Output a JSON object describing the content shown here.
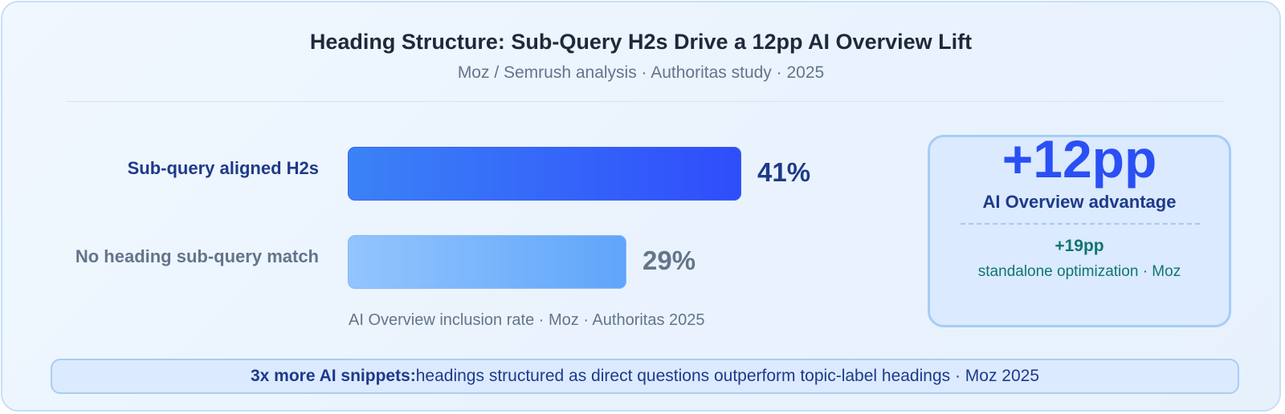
{
  "title": "Heading Structure: Sub-Query H2s Drive a 12pp AI Overview Lift",
  "subtitle": "Moz / Semrush analysis · Authoritas study · 2025",
  "chart_data": {
    "type": "bar",
    "orientation": "horizontal",
    "categories": [
      "Sub-query aligned H2s",
      "No heading sub-query match"
    ],
    "values": [
      41,
      29
    ],
    "value_labels": [
      "41%",
      "29%"
    ],
    "unit": "%",
    "xlabel": "AI Overview inclusion rate · Moz · Authoritas 2025",
    "xlim": [
      0,
      60
    ],
    "grid": false,
    "colors": [
      "#3b82f6",
      "#93c5fd"
    ]
  },
  "stat": {
    "value": "+12pp",
    "caption": "AI Overview advantage",
    "secondary_value": "+19pp",
    "secondary_caption": "standalone optimization · Moz"
  },
  "footer": {
    "strong": "3x more AI snippets:",
    "text": "headings structured as direct questions outperform topic-label headings · Moz 2025"
  },
  "colors": {
    "accent": "#2a4ff5",
    "teal": "#0f766e",
    "navy": "#1e3a8a"
  }
}
